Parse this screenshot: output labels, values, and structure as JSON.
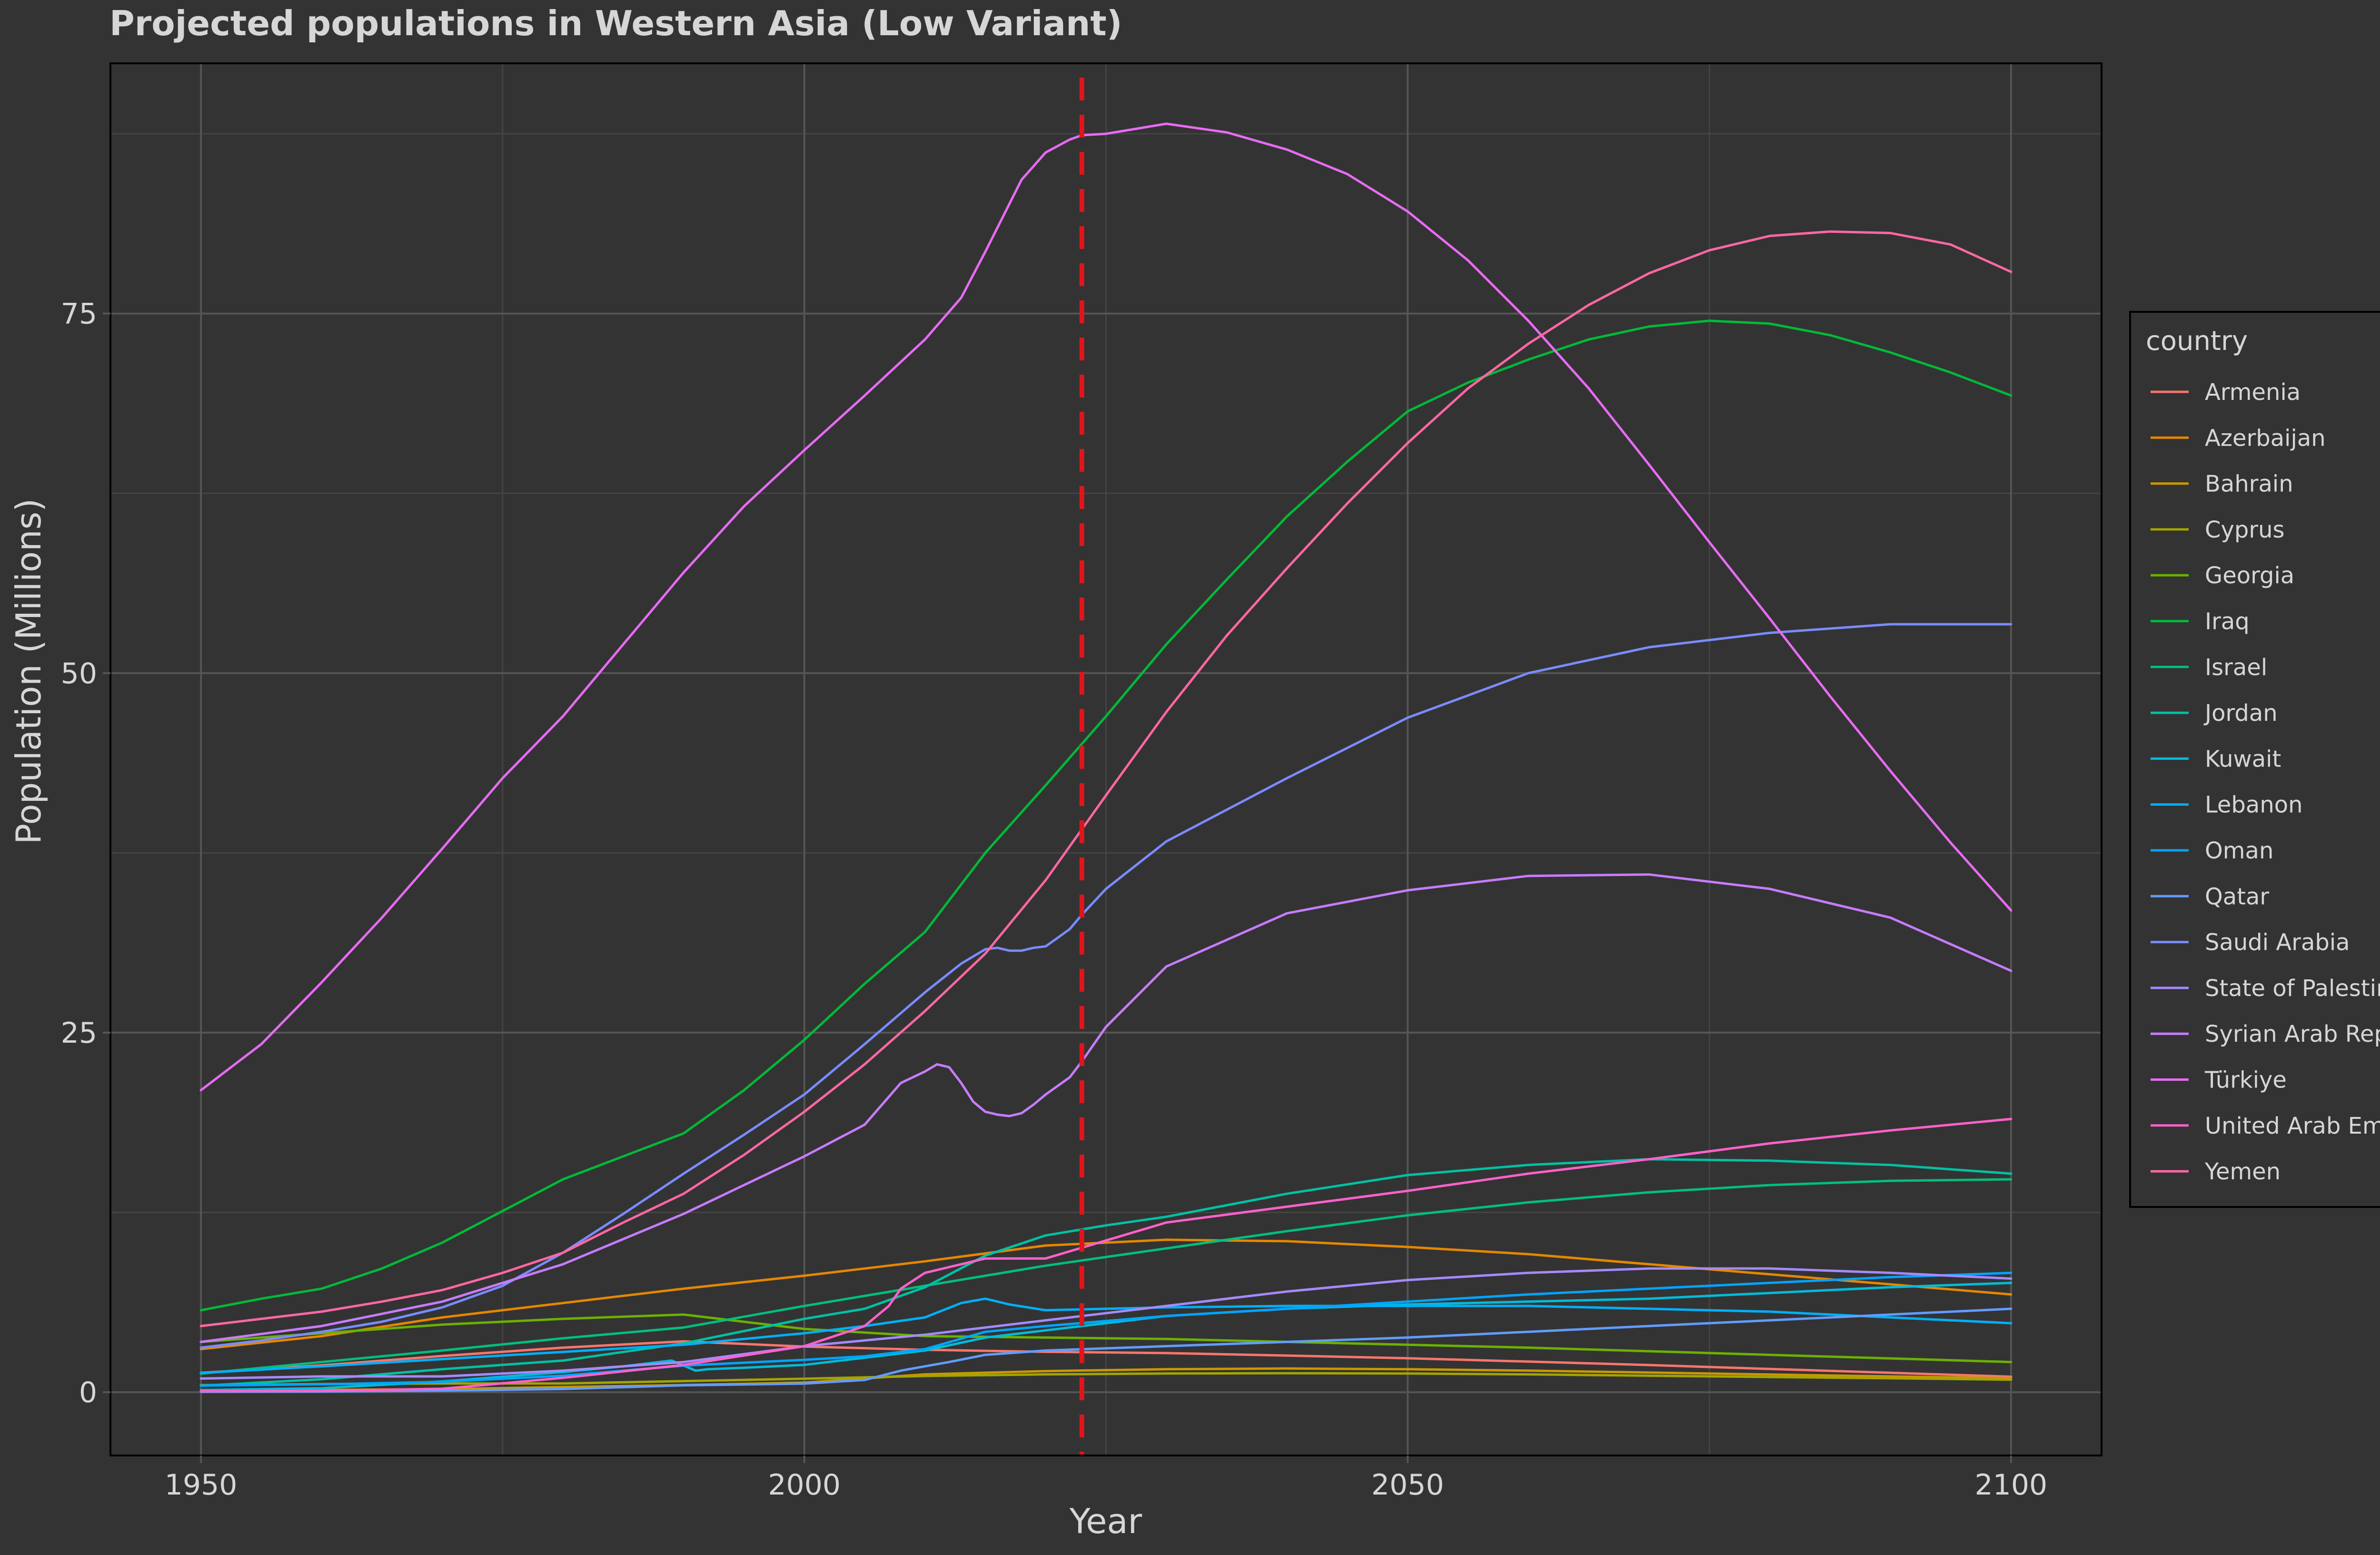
{
  "chart_data": {
    "type": "line",
    "title": "Projected populations in Western Asia (Low Variant)",
    "xlabel": "Year",
    "ylabel": "Population (Millions)",
    "xlim": [
      1942.5,
      2107.5
    ],
    "ylim": [
      -4.4,
      92.4
    ],
    "x_ticks": [
      1950,
      2000,
      2050,
      2100
    ],
    "y_ticks": [
      0,
      25,
      50,
      75
    ],
    "grid": true,
    "legend_position": "right",
    "legend_title": "country",
    "annotation": {
      "type": "vertical-dashed-line",
      "x": 2023,
      "color": "#e0151b"
    },
    "background": "#333333",
    "series": [
      {
        "name": "Armenia",
        "color": "#F8766D",
        "x": [
          1950,
          1960,
          1970,
          1980,
          1990,
          2000,
          2010,
          2020,
          2030,
          2040,
          2050,
          2060,
          2070,
          2080,
          2090,
          2100
        ],
        "values": [
          1.35,
          1.87,
          2.52,
          3.1,
          3.54,
          3.17,
          2.95,
          2.81,
          2.72,
          2.55,
          2.36,
          2.13,
          1.89,
          1.62,
          1.35,
          1.08
        ]
      },
      {
        "name": "Azerbaijan",
        "color": "#E58700",
        "x": [
          1950,
          1960,
          1970,
          1980,
          1990,
          2000,
          2010,
          2020,
          2030,
          2040,
          2050,
          2060,
          2070,
          2080,
          2090,
          2100
        ],
        "values": [
          3.0,
          3.9,
          5.2,
          6.2,
          7.2,
          8.1,
          9.1,
          10.2,
          10.6,
          10.5,
          10.1,
          9.6,
          8.9,
          8.2,
          7.5,
          6.8
        ]
      },
      {
        "name": "Bahrain",
        "color": "#C99800",
        "x": [
          1950,
          1960,
          1970,
          1980,
          1990,
          2000,
          2010,
          2020,
          2030,
          2040,
          2050,
          2060,
          2070,
          2080,
          2090,
          2100
        ],
        "values": [
          0.12,
          0.16,
          0.21,
          0.36,
          0.5,
          0.67,
          1.24,
          1.47,
          1.6,
          1.65,
          1.6,
          1.5,
          1.37,
          1.23,
          1.1,
          0.97
        ]
      },
      {
        "name": "Cyprus",
        "color": "#A3A500",
        "x": [
          1950,
          1960,
          1970,
          1980,
          1990,
          2000,
          2010,
          2020,
          2030,
          2040,
          2050,
          2060,
          2070,
          2080,
          2090,
          2100
        ],
        "values": [
          0.49,
          0.57,
          0.61,
          0.61,
          0.77,
          0.94,
          1.13,
          1.24,
          1.3,
          1.32,
          1.3,
          1.24,
          1.15,
          1.06,
          0.97,
          0.87
        ]
      },
      {
        "name": "Georgia",
        "color": "#6BB100",
        "x": [
          1950,
          1960,
          1970,
          1980,
          1990,
          2000,
          2010,
          2020,
          2030,
          2040,
          2050,
          2060,
          2070,
          2080,
          2090,
          2100
        ],
        "values": [
          3.5,
          4.1,
          4.7,
          5.1,
          5.4,
          4.4,
          3.9,
          3.8,
          3.7,
          3.5,
          3.3,
          3.1,
          2.85,
          2.6,
          2.35,
          2.1
        ]
      },
      {
        "name": "Iraq",
        "color": "#00BA38",
        "x": [
          1950,
          1955,
          1960,
          1965,
          1970,
          1975,
          1980,
          1985,
          1990,
          1995,
          2000,
          2005,
          2010,
          2015,
          2020,
          2025,
          2030,
          2035,
          2040,
          2045,
          2050,
          2055,
          2060,
          2065,
          2070,
          2075,
          2080,
          2085,
          2090,
          2095,
          2100
        ],
        "values": [
          5.7,
          6.5,
          7.2,
          8.6,
          10.4,
          12.6,
          14.8,
          16.4,
          18.0,
          21.0,
          24.5,
          28.4,
          32.0,
          37.5,
          42.2,
          47.0,
          52.0,
          56.5,
          60.9,
          64.7,
          68.2,
          70.2,
          71.8,
          73.2,
          74.1,
          74.5,
          74.3,
          73.5,
          72.3,
          70.9,
          69.3
        ]
      },
      {
        "name": "Israel",
        "color": "#00BF7D",
        "x": [
          1950,
          1960,
          1970,
          1980,
          1990,
          2000,
          2010,
          2020,
          2030,
          2040,
          2050,
          2060,
          2070,
          2080,
          2090,
          2100
        ],
        "values": [
          1.29,
          2.1,
          2.9,
          3.75,
          4.5,
          6.0,
          7.4,
          8.8,
          10.0,
          11.2,
          12.3,
          13.2,
          13.9,
          14.4,
          14.7,
          14.8
        ]
      },
      {
        "name": "Jordan",
        "color": "#00C1A3",
        "x": [
          1950,
          1960,
          1970,
          1980,
          1990,
          2000,
          2005,
          2010,
          2015,
          2020,
          2025,
          2030,
          2040,
          2050,
          2060,
          2070,
          2080,
          2090,
          2100
        ],
        "values": [
          0.45,
          0.9,
          1.6,
          2.2,
          3.4,
          5.1,
          5.8,
          7.3,
          9.5,
          10.9,
          11.6,
          12.2,
          13.8,
          15.1,
          15.8,
          16.2,
          16.1,
          15.8,
          15.2
        ]
      },
      {
        "name": "Kuwait",
        "color": "#00BCD8",
        "x": [
          1950,
          1960,
          1970,
          1980,
          1985,
          1989,
          1991,
          1992,
          1995,
          2000,
          2010,
          2015,
          2020,
          2030,
          2040,
          2050,
          2060,
          2070,
          2080,
          2090,
          2100
        ],
        "values": [
          0.15,
          0.28,
          0.75,
          1.4,
          1.8,
          2.2,
          1.5,
          1.6,
          1.7,
          1.9,
          2.9,
          3.8,
          4.3,
          5.3,
          5.8,
          6.1,
          6.3,
          6.5,
          6.9,
          7.3,
          7.6
        ]
      },
      {
        "name": "Lebanon",
        "color": "#00B0F6",
        "x": [
          1950,
          1960,
          1970,
          1980,
          1990,
          2000,
          2005,
          2010,
          2013,
          2015,
          2017,
          2020,
          2030,
          2040,
          2050,
          2060,
          2070,
          2080,
          2090,
          2100
        ],
        "values": [
          1.34,
          1.8,
          2.3,
          2.8,
          3.3,
          4.1,
          4.6,
          5.2,
          6.2,
          6.5,
          6.1,
          5.7,
          5.9,
          6.0,
          6.0,
          6.0,
          5.8,
          5.6,
          5.2,
          4.8
        ]
      },
      {
        "name": "Oman",
        "color": "#00A5FF",
        "x": [
          1950,
          1960,
          1970,
          1980,
          1990,
          2000,
          2005,
          2010,
          2015,
          2020,
          2030,
          2040,
          2050,
          2060,
          2070,
          2080,
          2090,
          2100
        ],
        "values": [
          0.46,
          0.55,
          0.72,
          1.15,
          1.85,
          2.25,
          2.5,
          3.0,
          4.2,
          4.6,
          5.3,
          5.8,
          6.3,
          6.8,
          7.2,
          7.6,
          8.0,
          8.3
        ]
      },
      {
        "name": "Qatar",
        "color": "#619CFF",
        "x": [
          1950,
          1960,
          1970,
          1980,
          1990,
          2000,
          2005,
          2008,
          2010,
          2012,
          2015,
          2020,
          2030,
          2040,
          2050,
          2060,
          2070,
          2080,
          2090,
          2100
        ],
        "values": [
          0.03,
          0.05,
          0.11,
          0.22,
          0.48,
          0.6,
          0.85,
          1.5,
          1.8,
          2.1,
          2.6,
          2.9,
          3.2,
          3.5,
          3.8,
          4.2,
          4.6,
          5.0,
          5.4,
          5.8
        ]
      },
      {
        "name": "Saudi Arabia",
        "color": "#7A8CFF",
        "x": [
          1950,
          1955,
          1960,
          1965,
          1970,
          1975,
          1980,
          1985,
          1990,
          1995,
          2000,
          2005,
          2010,
          2013,
          2015,
          2016,
          2017,
          2018,
          2019,
          2020,
          2021,
          2022,
          2023,
          2025,
          2030,
          2040,
          2050,
          2060,
          2070,
          2080,
          2090,
          2100
        ],
        "values": [
          3.1,
          3.6,
          4.2,
          4.9,
          5.9,
          7.4,
          9.7,
          12.4,
          15.2,
          17.9,
          20.7,
          24.2,
          27.8,
          29.8,
          30.8,
          30.9,
          30.7,
          30.7,
          30.9,
          31.0,
          31.6,
          32.2,
          33.2,
          35.0,
          38.3,
          42.7,
          46.9,
          50.0,
          51.8,
          52.8,
          53.4,
          53.4
        ]
      },
      {
        "name": "State of Palestine",
        "color": "#A58AFF",
        "x": [
          1950,
          1960,
          1970,
          1980,
          1990,
          2000,
          2010,
          2020,
          2030,
          2040,
          2050,
          2060,
          2070,
          2080,
          2090,
          2100
        ],
        "values": [
          0.95,
          1.1,
          1.1,
          1.5,
          2.1,
          3.2,
          4.0,
          5.0,
          6.0,
          7.0,
          7.8,
          8.3,
          8.6,
          8.6,
          8.3,
          7.9
        ]
      },
      {
        "name": "Syrian Arab Republic",
        "color": "#C77CFF",
        "x": [
          1950,
          1960,
          1970,
          1980,
          1990,
          2000,
          2005,
          2008,
          2010,
          2011,
          2012,
          2013,
          2014,
          2015,
          2016,
          2017,
          2018,
          2019,
          2020,
          2021,
          2022,
          2023,
          2025,
          2030,
          2040,
          2050,
          2060,
          2070,
          2080,
          2090,
          2100
        ],
        "values": [
          3.5,
          4.6,
          6.3,
          8.9,
          12.4,
          16.4,
          18.6,
          21.5,
          22.3,
          22.8,
          22.6,
          21.5,
          20.2,
          19.5,
          19.3,
          19.2,
          19.4,
          20.0,
          20.7,
          21.3,
          21.9,
          23.0,
          25.4,
          29.6,
          33.3,
          34.9,
          35.9,
          36.0,
          35.0,
          33.0,
          29.3
        ]
      },
      {
        "name": "Türkiye",
        "color": "#E76BF3",
        "x": [
          1950,
          1955,
          1960,
          1965,
          1970,
          1975,
          1980,
          1985,
          1990,
          1995,
          2000,
          2005,
          2010,
          2013,
          2015,
          2018,
          2020,
          2022,
          2023,
          2025,
          2030,
          2035,
          2040,
          2045,
          2050,
          2055,
          2060,
          2065,
          2070,
          2075,
          2080,
          2085,
          2090,
          2095,
          2100
        ],
        "values": [
          21.0,
          24.2,
          28.5,
          33.0,
          37.8,
          42.7,
          47.0,
          52.0,
          57.0,
          61.6,
          65.5,
          69.3,
          73.2,
          76.1,
          79.3,
          84.3,
          86.2,
          87.1,
          87.4,
          87.5,
          88.2,
          87.6,
          86.4,
          84.7,
          82.1,
          78.7,
          74.5,
          69.8,
          64.5,
          59.1,
          53.8,
          48.4,
          43.2,
          38.2,
          33.5
        ]
      },
      {
        "name": "United Arab Emirates",
        "color": "#FF61CC",
        "x": [
          1950,
          1960,
          1970,
          1980,
          1990,
          2000,
          2005,
          2007,
          2008,
          2010,
          2015,
          2020,
          2030,
          2040,
          2050,
          2060,
          2070,
          2080,
          2090,
          2100
        ],
        "values": [
          0.07,
          0.09,
          0.24,
          1.0,
          1.9,
          3.2,
          4.6,
          6.0,
          7.2,
          8.3,
          9.3,
          9.3,
          11.8,
          12.9,
          14.0,
          15.2,
          16.2,
          17.3,
          18.2,
          19.0
        ]
      },
      {
        "name": "Yemen",
        "color": "#FF67A4",
        "x": [
          1950,
          1955,
          1960,
          1965,
          1970,
          1975,
          1980,
          1985,
          1990,
          1995,
          2000,
          2005,
          2010,
          2015,
          2020,
          2025,
          2030,
          2035,
          2040,
          2045,
          2050,
          2055,
          2060,
          2065,
          2070,
          2075,
          2080,
          2085,
          2090,
          2095,
          2100
        ],
        "values": [
          4.6,
          5.1,
          5.6,
          6.3,
          7.1,
          8.3,
          9.7,
          11.8,
          13.8,
          16.5,
          19.5,
          22.8,
          26.5,
          30.5,
          35.6,
          41.5,
          47.3,
          52.6,
          57.3,
          61.8,
          66.0,
          69.8,
          72.9,
          75.6,
          77.8,
          79.4,
          80.4,
          80.7,
          80.6,
          79.8,
          77.9
        ]
      }
    ]
  }
}
